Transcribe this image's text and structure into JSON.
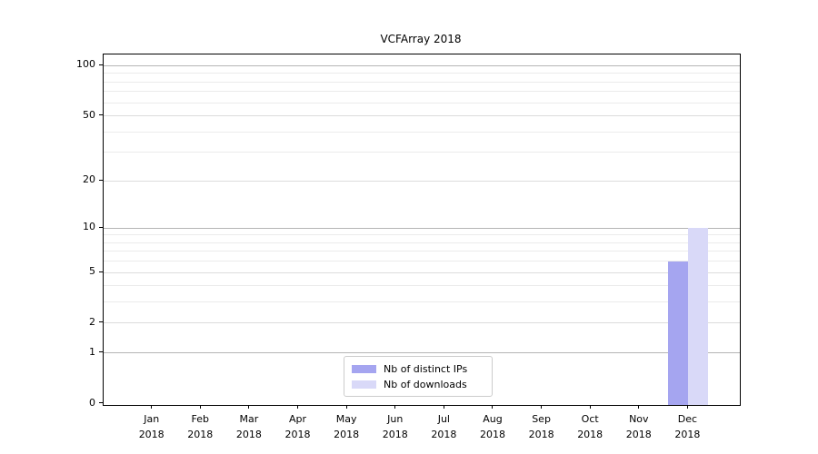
{
  "title": "VCFArray 2018",
  "chart_data": {
    "type": "bar",
    "title": "VCFArray 2018",
    "categories": [
      "Jan 2018",
      "Feb 2018",
      "Mar 2018",
      "Apr 2018",
      "May 2018",
      "Jun 2018",
      "Jul 2018",
      "Aug 2018",
      "Sep 2018",
      "Oct 2018",
      "Nov 2018",
      "Dec 2018"
    ],
    "x_tick_line1": [
      "Jan",
      "Feb",
      "Mar",
      "Apr",
      "May",
      "Jun",
      "Jul",
      "Aug",
      "Sep",
      "Oct",
      "Nov",
      "Dec"
    ],
    "x_tick_line2": [
      "2018",
      "2018",
      "2018",
      "2018",
      "2018",
      "2018",
      "2018",
      "2018",
      "2018",
      "2018",
      "2018",
      "2018"
    ],
    "series": [
      {
        "name": "Nb of distinct IPs",
        "color": "#a5a5f0",
        "values": [
          0,
          0,
          0,
          0,
          0,
          0,
          0,
          0,
          0,
          0,
          0,
          6
        ]
      },
      {
        "name": "Nb of downloads",
        "color": "#d9d9f8",
        "values": [
          0,
          0,
          0,
          0,
          0,
          0,
          0,
          0,
          0,
          0,
          0,
          10
        ]
      }
    ],
    "y_scale": "log1p",
    "y_axis": {
      "labeled_ticks": [
        0,
        1,
        2,
        5,
        10,
        20,
        50,
        100
      ],
      "decade_gridlines": [
        1,
        10,
        100
      ],
      "mid_gridlines": [
        2,
        5,
        20,
        50
      ],
      "minor_gridlines": [
        3,
        4,
        6,
        7,
        8,
        9,
        30,
        40,
        60,
        70,
        80,
        90
      ],
      "top_value": 116
    },
    "grid": true,
    "legend_position": "lower center",
    "colors": {
      "decade_grid": "#b5b5b5",
      "mid_grid": "#dcdcdc",
      "minor_grid": "#ebebeb",
      "spine": "#000000"
    }
  },
  "legend": {
    "items": [
      {
        "label": "Nb of distinct IPs",
        "color": "#a5a5f0"
      },
      {
        "label": "Nb of downloads",
        "color": "#d9d9f8"
      }
    ]
  }
}
